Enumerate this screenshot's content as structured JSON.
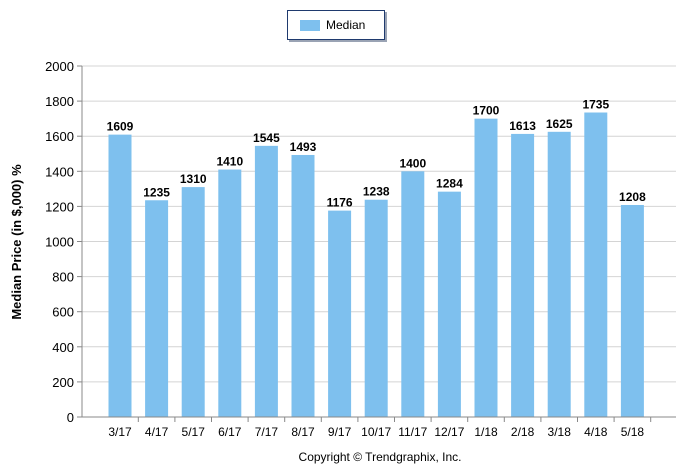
{
  "chart_data": {
    "type": "bar",
    "categories": [
      "3/17",
      "4/17",
      "5/17",
      "6/17",
      "7/17",
      "8/17",
      "9/17",
      "10/17",
      "11/17",
      "12/17",
      "1/18",
      "2/18",
      "3/18",
      "4/18",
      "5/18"
    ],
    "series": [
      {
        "name": "Median",
        "values": [
          1609,
          1235,
          1310,
          1410,
          1545,
          1493,
          1176,
          1238,
          1400,
          1284,
          1700,
          1613,
          1625,
          1735,
          1208
        ]
      }
    ],
    "ylabel": "Median Price (in $,000) %",
    "xlabel": "",
    "ylim": [
      0,
      2000
    ],
    "yticks": [
      0,
      200,
      400,
      600,
      800,
      1000,
      1200,
      1400,
      1600,
      1800,
      2000
    ],
    "grid": true,
    "legend_position": "top-center",
    "bar_color": "#7ec0ee",
    "grid_color": "#d4d4d4"
  },
  "footer": {
    "copyright": "Copyright © Trendgraphix, Inc."
  }
}
